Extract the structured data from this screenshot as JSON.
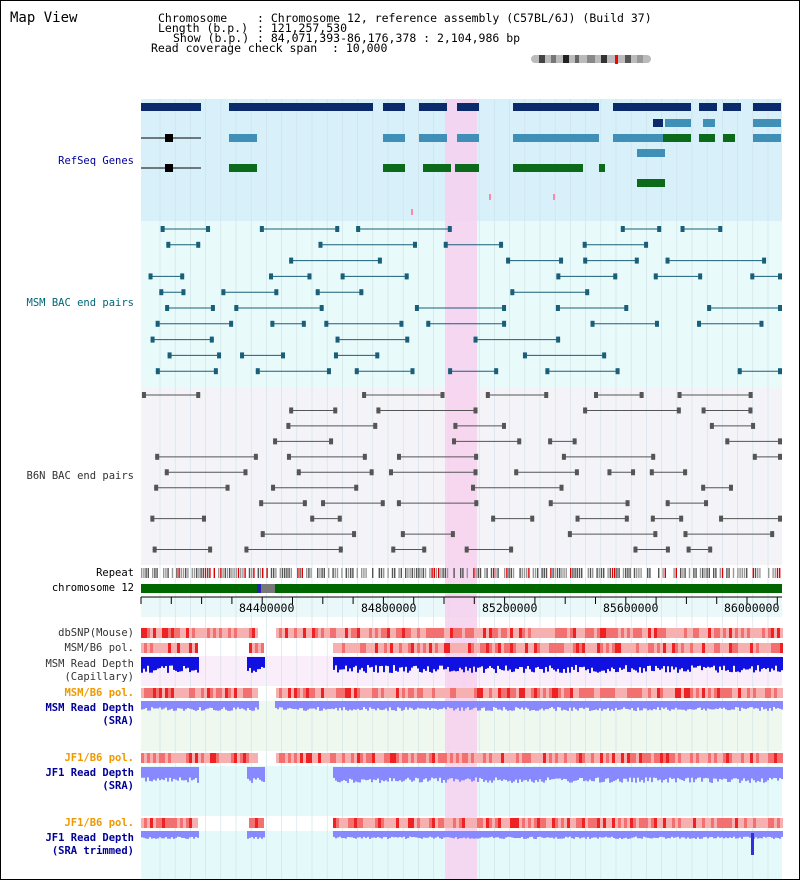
{
  "view_title": "Map View",
  "header": {
    "chromosome_key": "Chromosome",
    "chromosome_value": ": Chromosome 12, reference assembly (C57BL/6J) (Build 37)",
    "length_key": "Length (b.p.)",
    "length_value": ": 121,257,530",
    "show_key": "Show (b.p.)",
    "show_value": ": 84,071,393-86,176,378 : 2,104,986 bp",
    "span_key": "Read coverage check span",
    "span_value": ": 10,000"
  },
  "tracks": {
    "refseq": "RefSeq Genes",
    "msm_bac": "MSM BAC end pairs",
    "b6n_bac": "B6N BAC end pairs",
    "repeat": "Repeat",
    "chromosome": "chromosome 12",
    "dbsnp": "dbSNP(Mouse)",
    "msm_pol_1": "MSM/B6 pol.",
    "msm_depth_cap_1": "MSM Read Depth",
    "msm_depth_cap_2": "(Capillary)",
    "msm_pol_2": "MSM/B6 pol.",
    "msm_depth_sra_1": "MSM Read Depth",
    "msm_depth_sra_2": "(SRA)",
    "jf1_pol_1": "JF1/B6 pol.",
    "jf1_depth_1": "JF1 Read Depth",
    "jf1_depth_2": "(SRA)",
    "jf1_pol_2": "JF1/B6 pol.",
    "jf1_trim_1": "JF1 Read Depth",
    "jf1_trim_2": "(SRA trimmed)"
  },
  "axis": {
    "ticks": [
      "84400000",
      "84800000",
      "85200000",
      "85600000",
      "86000000"
    ]
  },
  "colors": {
    "refseq_bg": "#d8f0fa",
    "msm_bg": "#e8fafa",
    "b6n_bg": "#f4f4f8",
    "highlight": "#f7d0ee",
    "gene_dark": "#0b2a6b",
    "gene_mid": "#3f8fb6",
    "gene_green": "#0b6b1a",
    "msm_line": "#1a5f7a",
    "b6n_line": "#555555",
    "chrom_green": "#006600",
    "depth_blue": "#1010e0",
    "depth_light": "#8888ff",
    "pol_red": "#ee3333",
    "label_blue": "#000099",
    "label_teal": "#006677",
    "label_orange": "#ee9900"
  }
}
